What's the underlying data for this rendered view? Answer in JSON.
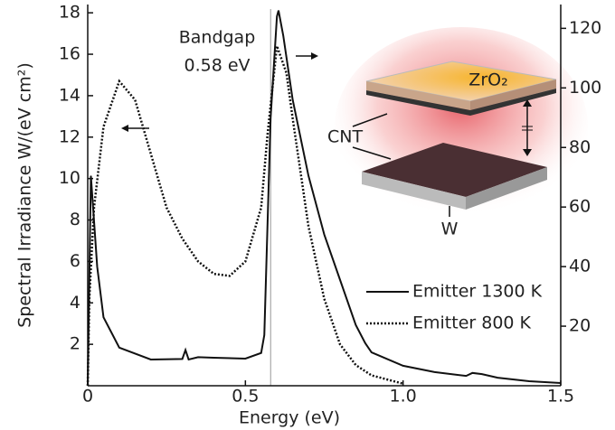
{
  "chart_data": {
    "type": "line",
    "xlabel": "Energy (eV)",
    "ylabel": "Spectral Irradiance W/(eV cm²)",
    "xlim": [
      0,
      1.5
    ],
    "xticks": [
      0,
      0.5,
      {
        "value": 1,
        "label": "1.0"
      },
      1.5
    ],
    "ylim": [
      0,
      18.4
    ],
    "yticks": [
      2,
      4,
      6,
      8,
      10,
      12,
      14,
      16,
      18
    ],
    "y2lim": [
      0,
      128
    ],
    "y2ticks": [
      20,
      40,
      60,
      80,
      100,
      120
    ],
    "annotations": {
      "bandgap": "Bandgap",
      "bandgap_value": "0.58 eV",
      "bandgap_x": 0.58
    },
    "inset_labels": {
      "top": "ZrO₂",
      "left": "CNT",
      "bottom": "W"
    },
    "series": [
      {
        "name": "Emitter 1300 K",
        "color": "#111111",
        "style": "solid",
        "axis": "y2",
        "x": [
          0,
          0.01,
          0.03,
          0.05,
          0.1,
          0.2,
          0.3,
          0.31,
          0.32,
          0.35,
          0.4,
          0.5,
          0.55,
          0.56,
          0.58,
          0.6,
          0.605,
          0.62,
          0.65,
          0.7,
          0.75,
          0.8,
          0.85,
          0.88,
          0.9,
          1.0,
          1.1,
          1.2,
          1.22,
          1.25,
          1.3,
          1.4,
          1.5
        ],
        "values": [
          0,
          70.5,
          40,
          23,
          12.8,
          8.8,
          9,
          12,
          8.8,
          9.6,
          9.4,
          9.1,
          11,
          17,
          90,
          124,
          126,
          117.6,
          96,
          70.5,
          50.8,
          35.6,
          20.4,
          14.3,
          11.2,
          6.7,
          4.6,
          3.3,
          4.3,
          3.9,
          2.7,
          1.5,
          0.9
        ]
      },
      {
        "name": "Emitter 800 K",
        "color": "#111111",
        "style": "dotted",
        "axis": "y",
        "x": [
          0,
          0.005,
          0.02,
          0.05,
          0.1,
          0.15,
          0.2,
          0.25,
          0.3,
          0.35,
          0.4,
          0.45,
          0.5,
          0.55,
          0.57,
          0.6,
          0.63,
          0.65,
          0.7,
          0.75,
          0.8,
          0.85,
          0.9,
          1.0
        ],
        "values": [
          0,
          4.2,
          8.6,
          12.5,
          14.7,
          13.8,
          11.2,
          8.6,
          7.1,
          6.0,
          5.4,
          5.3,
          6.0,
          8.6,
          12.1,
          16.4,
          15.1,
          12.9,
          7.7,
          4.2,
          2.0,
          1.0,
          0.5,
          0.1
        ]
      }
    ]
  }
}
